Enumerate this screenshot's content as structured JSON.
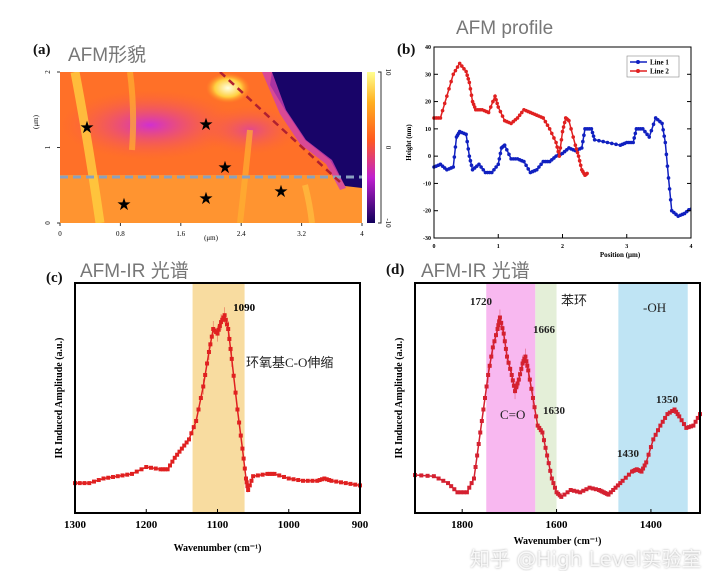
{
  "panels": {
    "a": {
      "label": "(a)",
      "title": "AFM形貌"
    },
    "b": {
      "label": "(b)",
      "title": "AFM profile"
    },
    "c": {
      "label": "(c)",
      "title": "AFM-IR 光谱"
    },
    "d": {
      "label": "(d)",
      "title": "AFM-IR 光谱"
    }
  },
  "watermark": "知乎 @High Level实验室",
  "chart_data": [
    {
      "type": "heatmap",
      "panel": "a",
      "xlabel": "(μm)",
      "ylabel": "(μm)",
      "xticks": [
        "0",
        "0.8",
        "1.6",
        "2.4",
        "3.2",
        "4"
      ],
      "yticks": [
        "0",
        "1",
        "2"
      ],
      "xlim": [
        0,
        4
      ],
      "ylim": [
        0,
        2
      ],
      "colorbar": {
        "ticks": [
          "10",
          "0",
          "-10"
        ],
        "range": [
          -10,
          10
        ],
        "colors": [
          "#10005a",
          "#c020d0",
          "#ff5a20",
          "#ffb020",
          "#ffff90"
        ]
      },
      "annotations": {
        "stars": 7,
        "line1_color": "#8aa0c0",
        "line2_color": "#b02030"
      }
    },
    {
      "type": "line",
      "panel": "b",
      "xlabel": "Position (μm)",
      "ylabel": "Height (nm)",
      "xlim": [
        0,
        4
      ],
      "ylim": [
        -30,
        40
      ],
      "xticks": [
        "0",
        "1",
        "2",
        "3",
        "4"
      ],
      "yticks": [
        "-30",
        "-20",
        "-10",
        "0",
        "10",
        "20",
        "30",
        "40"
      ],
      "legend": "top-right",
      "series": [
        {
          "name": "Line 1",
          "color": "#1020c0",
          "x": [
            0,
            0.1,
            0.2,
            0.3,
            0.35,
            0.4,
            0.5,
            0.55,
            0.6,
            0.7,
            0.8,
            0.9,
            1.0,
            1.05,
            1.1,
            1.2,
            1.3,
            1.4,
            1.5,
            1.6,
            1.7,
            1.8,
            1.9,
            2.0,
            2.1,
            2.2,
            2.3,
            2.35,
            2.45,
            2.5,
            2.7,
            2.9,
            3.0,
            3.1,
            3.15,
            3.25,
            3.35,
            3.45,
            3.55,
            3.6,
            3.65,
            3.7,
            3.8,
            3.9,
            4.0
          ],
          "y": [
            -4,
            -3,
            -5,
            -4,
            7,
            9,
            8,
            0,
            -5,
            -3,
            -6,
            -6,
            -3,
            3,
            4,
            -1,
            -1,
            -2,
            -6,
            -5,
            -2,
            -2,
            0,
            1,
            3,
            2,
            3,
            10,
            10,
            6,
            5,
            4,
            5,
            5,
            10,
            10,
            7,
            14,
            12,
            5,
            -8,
            -20,
            -22,
            -21,
            -19
          ]
        },
        {
          "name": "Line 2",
          "color": "#e02020",
          "x": [
            0,
            0.1,
            0.2,
            0.3,
            0.4,
            0.5,
            0.55,
            0.6,
            0.65,
            0.75,
            0.85,
            0.95,
            1.0,
            1.1,
            1.2,
            1.3,
            1.4,
            1.5,
            1.6,
            1.7,
            1.8,
            1.9,
            1.95,
            2.0,
            2.05,
            2.1,
            2.2,
            2.25,
            2.3,
            2.35,
            2.4
          ],
          "y": [
            14,
            14,
            22,
            30,
            34,
            31,
            27,
            20,
            17,
            17,
            16,
            22,
            18,
            13,
            12,
            14,
            17,
            16,
            15,
            14,
            10,
            5,
            0,
            9,
            14,
            13,
            4,
            0,
            -5,
            -7,
            -6
          ]
        }
      ]
    },
    {
      "type": "line",
      "panel": "c",
      "xlabel": "Wavenumber (cm⁻¹)",
      "ylabel": "IR Induced Amplitude (a.u.)",
      "xlim": [
        1300,
        900
      ],
      "ylim": [
        0,
        1
      ],
      "xticks": [
        "1300",
        "1200",
        "1100",
        "1000",
        "900"
      ],
      "bands": [
        {
          "from": 1135,
          "to": 1062,
          "color": "#f8dca0",
          "label": "环氧基C-O伸缩"
        }
      ],
      "annotations": [
        "1090"
      ],
      "series": [
        {
          "color": "#e02020",
          "x": [
            1300,
            1280,
            1260,
            1240,
            1220,
            1200,
            1180,
            1170,
            1160,
            1150,
            1140,
            1130,
            1120,
            1112,
            1106,
            1100,
            1095,
            1090,
            1085,
            1080,
            1072,
            1065,
            1060,
            1057,
            1050,
            1030,
            1020,
            1000,
            980,
            960,
            950,
            940,
            920,
            900
          ],
          "y": [
            0.13,
            0.13,
            0.15,
            0.16,
            0.17,
            0.2,
            0.19,
            0.19,
            0.24,
            0.28,
            0.32,
            0.4,
            0.55,
            0.7,
            0.8,
            0.78,
            0.83,
            0.86,
            0.8,
            0.67,
            0.45,
            0.28,
            0.15,
            0.1,
            0.16,
            0.17,
            0.17,
            0.15,
            0.14,
            0.14,
            0.15,
            0.14,
            0.13,
            0.12
          ]
        }
      ]
    },
    {
      "type": "line",
      "panel": "d",
      "xlabel": "Wavenumber (cm⁻¹)",
      "ylabel": "IR Induced Amplitude (a.u.)",
      "xlim": [
        1900,
        1296
      ],
      "ylim": [
        0,
        1
      ],
      "xticks": [
        "1800",
        "1600",
        "1400"
      ],
      "bands": [
        {
          "from": 1749,
          "to": 1645,
          "color": "#f8b8f0",
          "label": "C=O"
        },
        {
          "from": 1645,
          "to": 1600,
          "color": "#e4efd8",
          "label": "苯环"
        },
        {
          "from": 1469,
          "to": 1322,
          "color": "#bfe4f4",
          "label": "-OH"
        }
      ],
      "annotations": [
        "1720",
        "1666",
        "1630",
        "1430",
        "1350"
      ],
      "series": [
        {
          "color": "#d42030",
          "x": [
            1900,
            1860,
            1830,
            1810,
            1790,
            1775,
            1765,
            1755,
            1745,
            1735,
            1725,
            1720,
            1712,
            1705,
            1695,
            1688,
            1680,
            1672,
            1666,
            1660,
            1650,
            1640,
            1630,
            1620,
            1610,
            1600,
            1590,
            1570,
            1550,
            1530,
            1510,
            1500,
            1490,
            1475,
            1460,
            1440,
            1430,
            1420,
            1410,
            1395,
            1380,
            1365,
            1350,
            1340,
            1325,
            1310,
            1296
          ],
          "y": [
            0.165,
            0.16,
            0.13,
            0.09,
            0.09,
            0.15,
            0.3,
            0.45,
            0.6,
            0.72,
            0.8,
            0.85,
            0.78,
            0.68,
            0.6,
            0.53,
            0.58,
            0.65,
            0.68,
            0.62,
            0.5,
            0.38,
            0.35,
            0.25,
            0.15,
            0.09,
            0.07,
            0.1,
            0.09,
            0.11,
            0.1,
            0.09,
            0.08,
            0.11,
            0.14,
            0.18,
            0.19,
            0.18,
            0.22,
            0.32,
            0.38,
            0.43,
            0.45,
            0.42,
            0.37,
            0.38,
            0.43
          ]
        }
      ]
    }
  ]
}
